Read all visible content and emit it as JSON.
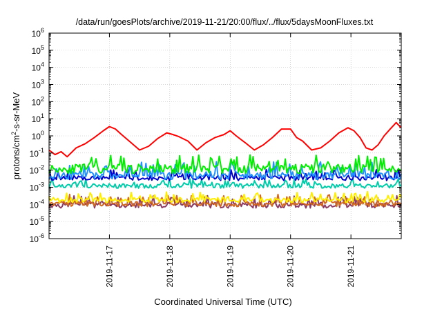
{
  "chart_data": {
    "type": "line",
    "title": "/data/run/goesPlots/archive/2019-11-21/20:00/flux/../flux/5daysMoonFluxes.txt",
    "xlabel": "Coordinated Universal Time (UTC)",
    "ylabel": {
      "prefix": "protons/cm",
      "sup": "2",
      "suffix": "-s-sr-MeV"
    },
    "y_scale": "log",
    "ylim": [
      1e-06,
      1000000.0
    ],
    "y_ticks": [
      {
        "exp": "-6"
      },
      {
        "exp": "-5"
      },
      {
        "exp": "-4"
      },
      {
        "exp": "-3"
      },
      {
        "exp": "-2"
      },
      {
        "exp": "-1"
      },
      {
        "exp": "0"
      },
      {
        "exp": "1"
      },
      {
        "exp": "2"
      },
      {
        "exp": "3"
      },
      {
        "exp": "4"
      },
      {
        "exp": "5"
      },
      {
        "exp": "6"
      }
    ],
    "y_tick_base": "10",
    "xlim": [
      "2019-11-16T00:00",
      "2019-11-21T20:00"
    ],
    "x_ticks": [
      "2019-11-17",
      "2019-11-18",
      "2019-11-19",
      "2019-11-20",
      "2019-11-21"
    ],
    "grid": true,
    "legend": "none",
    "series": [
      {
        "color": "#ff0000",
        "x_days": [
          0,
          0.1,
          0.2,
          0.3,
          0.45,
          0.6,
          0.75,
          0.9,
          1.0,
          1.1,
          1.2,
          1.3,
          1.4,
          1.5,
          1.65,
          1.8,
          1.95,
          2.05,
          2.15,
          2.3,
          2.45,
          2.6,
          2.75,
          2.9,
          3.0,
          3.1,
          3.25,
          3.4,
          3.55,
          3.7,
          3.85,
          4.0,
          4.1,
          4.2,
          4.35,
          4.5,
          4.65,
          4.8,
          4.95,
          5.05,
          5.15,
          5.25,
          5.35,
          5.45,
          5.55,
          5.65,
          5.75,
          5.83
        ],
        "values": [
          0.15,
          0.08,
          0.12,
          0.06,
          0.2,
          0.35,
          0.8,
          2.0,
          3.5,
          2.5,
          1.2,
          0.6,
          0.3,
          0.15,
          0.25,
          0.7,
          1.5,
          1.2,
          0.9,
          0.5,
          0.15,
          0.4,
          0.8,
          1.2,
          2.0,
          1.0,
          0.4,
          0.15,
          0.3,
          0.8,
          2.5,
          2.5,
          0.8,
          0.5,
          0.15,
          0.2,
          0.5,
          1.5,
          3.0,
          2.0,
          0.8,
          0.2,
          0.15,
          0.3,
          1.0,
          2.5,
          6.0,
          3.0
        ]
      },
      {
        "color": "#00ee00",
        "base": 0.012,
        "amp": 0.9,
        "seed": 11
      },
      {
        "color": "#1e90ff",
        "base": 0.005,
        "amp": 0.8,
        "seed": 23
      },
      {
        "color": "#0000cd",
        "base": 0.0035,
        "amp": 0.5,
        "seed": 37
      },
      {
        "color": "#00ccaa",
        "base": 0.0012,
        "amp": 0.45,
        "seed": 41
      },
      {
        "color": "#ffee00",
        "base": 0.00018,
        "amp": 0.5,
        "seed": 53
      },
      {
        "color": "#d2691e",
        "base": 0.00011,
        "amp": 0.55,
        "seed": 67
      },
      {
        "color": "#8b3a62",
        "base": 9e-05,
        "amp": 0.55,
        "seed": 79
      }
    ]
  }
}
